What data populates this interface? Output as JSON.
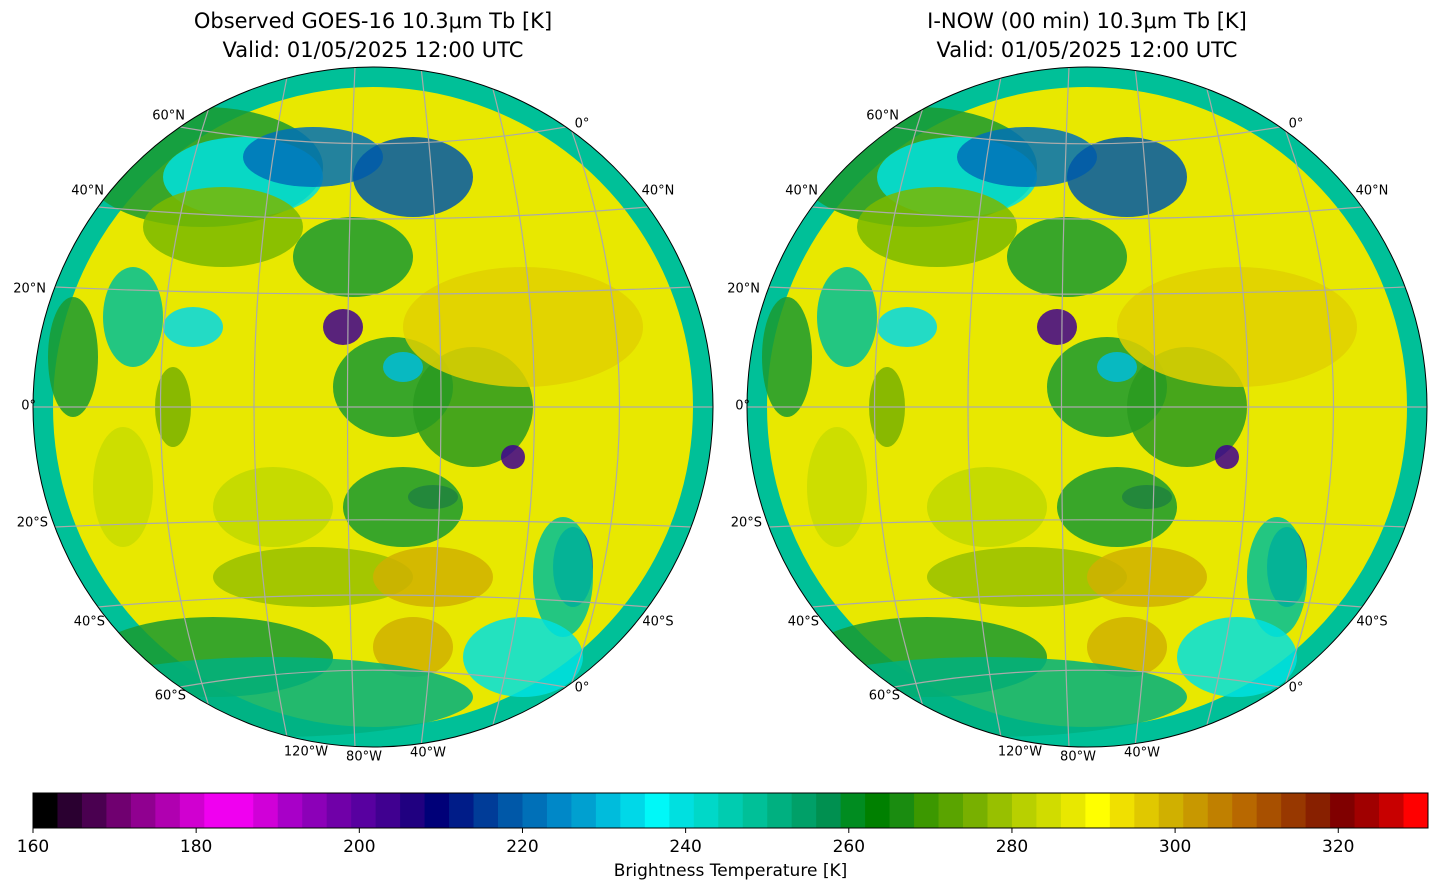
{
  "panels": [
    {
      "title": "Observed GOES-16 10.3μm Tb [K]",
      "subtitle": "Valid: 01/05/2025 12:00 UTC",
      "labels": [
        "60°N",
        "40°N",
        "20°N",
        "0°",
        "20°S",
        "40°S",
        "60°S",
        "0°",
        "40°N",
        "40°S",
        "0°",
        "120°W",
        "80°W",
        "40°W"
      ]
    },
    {
      "title": "I-NOW (00 min) 10.3μm Tb [K]",
      "subtitle": "Valid: 01/05/2025 12:00 UTC",
      "labels": [
        "60°N",
        "40°N",
        "20°N",
        "0°",
        "20°S",
        "40°S",
        "60°S",
        "0°",
        "40°N",
        "40°S",
        "0°",
        "120°W",
        "80°W",
        "40°W"
      ]
    }
  ],
  "chart_data": {
    "type": "colorbar",
    "label": "Brightness Temperature [K]",
    "xlim": [
      160,
      331
    ],
    "xticks": [
      160,
      180,
      200,
      220,
      240,
      260,
      280,
      300,
      320
    ],
    "colors": [
      "#000000",
      "#2a0030",
      "#4a0050",
      "#700070",
      "#900090",
      "#b000b0",
      "#d000d0",
      "#f000f0",
      "#f000f0",
      "#d000d8",
      "#a800c8",
      "#8c00b8",
      "#7000a8",
      "#5800a0",
      "#400090",
      "#200080",
      "#000078",
      "#001c88",
      "#003c98",
      "#0058a8",
      "#0070b8",
      "#0088c8",
      "#00a0d0",
      "#00bcdc",
      "#00d8e8",
      "#00f8f8",
      "#00e0e0",
      "#00d8c8",
      "#00ccb0",
      "#00c098",
      "#00b080",
      "#00a068",
      "#009050",
      "#008c20",
      "#008000",
      "#1a8c10",
      "#3c9800",
      "#5aa400",
      "#78b000",
      "#98c000",
      "#b8d000",
      "#d0dc00",
      "#e8e800",
      "#ffff00",
      "#f0e000",
      "#e0c800",
      "#d0b000",
      "#c89800",
      "#c08000",
      "#b86800",
      "#a85000",
      "#983800",
      "#882000",
      "#800000",
      "#a00000",
      "#c80000",
      "#ff0000"
    ]
  }
}
